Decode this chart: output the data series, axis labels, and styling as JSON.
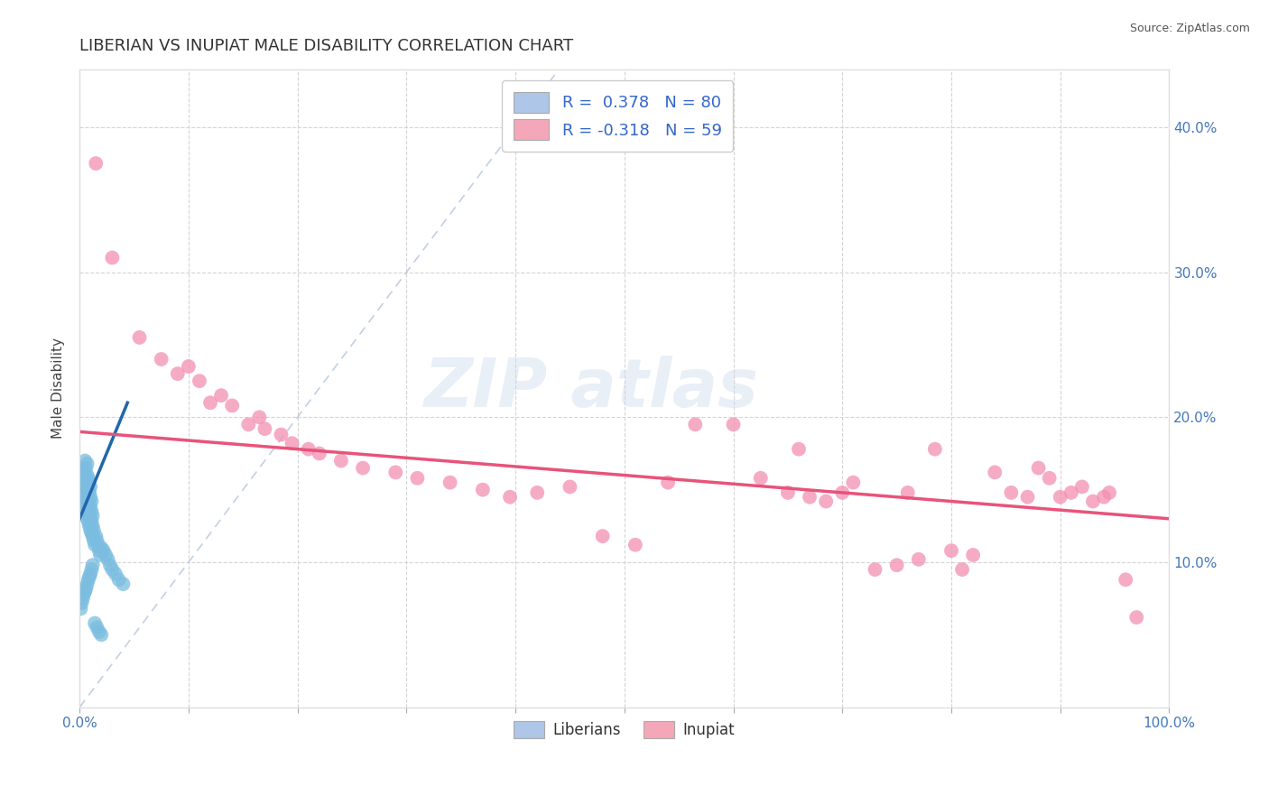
{
  "title": "LIBERIAN VS INUPIAT MALE DISABILITY CORRELATION CHART",
  "source": "Source: ZipAtlas.com",
  "ylabel": "Male Disability",
  "xlim": [
    0.0,
    1.0
  ],
  "ylim": [
    0.0,
    0.44
  ],
  "xtick_positions": [
    0.0,
    0.1,
    0.2,
    0.3,
    0.4,
    0.5,
    0.6,
    0.7,
    0.8,
    0.9,
    1.0
  ],
  "xtick_labels": [
    "0.0%",
    "",
    "",
    "",
    "",
    "",
    "",
    "",
    "",
    "",
    "100.0%"
  ],
  "yticks": [
    0.0,
    0.1,
    0.2,
    0.3,
    0.4
  ],
  "ytick_labels_right": [
    "",
    "10.0%",
    "20.0%",
    "30.0%",
    "40.0%"
  ],
  "legend_entries": [
    {
      "label": "R =  0.378   N = 80",
      "color": "#aec6e8"
    },
    {
      "label": "R = -0.318   N = 59",
      "color": "#f4a7b9"
    }
  ],
  "legend_bottom": [
    "Liberians",
    "Inupiat"
  ],
  "blue_color": "#7bbde0",
  "pink_color": "#f48fb1",
  "blue_line_color": "#2166ac",
  "pink_line_color": "#e8537a",
  "diag_line_color": "#b8c8dc",
  "background_color": "#ffffff",
  "grid_color": "#d0d0d0",
  "watermark_text": "ZIP atlas",
  "blue_dots": [
    [
      0.001,
      0.155
    ],
    [
      0.002,
      0.158
    ],
    [
      0.002,
      0.162
    ],
    [
      0.003,
      0.148
    ],
    [
      0.003,
      0.152
    ],
    [
      0.003,
      0.16
    ],
    [
      0.004,
      0.145
    ],
    [
      0.004,
      0.155
    ],
    [
      0.004,
      0.163
    ],
    [
      0.005,
      0.14
    ],
    [
      0.005,
      0.148
    ],
    [
      0.005,
      0.155
    ],
    [
      0.005,
      0.162
    ],
    [
      0.005,
      0.17
    ],
    [
      0.006,
      0.135
    ],
    [
      0.006,
      0.142
    ],
    [
      0.006,
      0.15
    ],
    [
      0.006,
      0.158
    ],
    [
      0.006,
      0.165
    ],
    [
      0.007,
      0.13
    ],
    [
      0.007,
      0.138
    ],
    [
      0.007,
      0.145
    ],
    [
      0.007,
      0.152
    ],
    [
      0.007,
      0.16
    ],
    [
      0.007,
      0.168
    ],
    [
      0.008,
      0.128
    ],
    [
      0.008,
      0.135
    ],
    [
      0.008,
      0.142
    ],
    [
      0.008,
      0.15
    ],
    [
      0.008,
      0.158
    ],
    [
      0.009,
      0.125
    ],
    [
      0.009,
      0.132
    ],
    [
      0.009,
      0.14
    ],
    [
      0.009,
      0.148
    ],
    [
      0.009,
      0.155
    ],
    [
      0.01,
      0.122
    ],
    [
      0.01,
      0.13
    ],
    [
      0.01,
      0.138
    ],
    [
      0.01,
      0.145
    ],
    [
      0.01,
      0.152
    ],
    [
      0.011,
      0.12
    ],
    [
      0.011,
      0.128
    ],
    [
      0.011,
      0.135
    ],
    [
      0.011,
      0.142
    ],
    [
      0.012,
      0.118
    ],
    [
      0.012,
      0.125
    ],
    [
      0.012,
      0.132
    ],
    [
      0.013,
      0.115
    ],
    [
      0.013,
      0.122
    ],
    [
      0.014,
      0.112
    ],
    [
      0.015,
      0.118
    ],
    [
      0.016,
      0.115
    ],
    [
      0.017,
      0.112
    ],
    [
      0.018,
      0.108
    ],
    [
      0.019,
      0.105
    ],
    [
      0.02,
      0.11
    ],
    [
      0.022,
      0.108
    ],
    [
      0.024,
      0.105
    ],
    [
      0.026,
      0.102
    ],
    [
      0.028,
      0.098
    ],
    [
      0.03,
      0.095
    ],
    [
      0.033,
      0.092
    ],
    [
      0.036,
      0.088
    ],
    [
      0.04,
      0.085
    ],
    [
      0.001,
      0.068
    ],
    [
      0.002,
      0.072
    ],
    [
      0.003,
      0.075
    ],
    [
      0.004,
      0.078
    ],
    [
      0.005,
      0.08
    ],
    [
      0.006,
      0.082
    ],
    [
      0.007,
      0.085
    ],
    [
      0.008,
      0.088
    ],
    [
      0.009,
      0.09
    ],
    [
      0.01,
      0.092
    ],
    [
      0.011,
      0.095
    ],
    [
      0.012,
      0.098
    ],
    [
      0.014,
      0.058
    ],
    [
      0.016,
      0.055
    ],
    [
      0.018,
      0.052
    ],
    [
      0.02,
      0.05
    ]
  ],
  "pink_dots": [
    [
      0.015,
      0.375
    ],
    [
      0.03,
      0.31
    ],
    [
      0.055,
      0.255
    ],
    [
      0.075,
      0.24
    ],
    [
      0.09,
      0.23
    ],
    [
      0.1,
      0.235
    ],
    [
      0.11,
      0.225
    ],
    [
      0.12,
      0.21
    ],
    [
      0.13,
      0.215
    ],
    [
      0.14,
      0.208
    ],
    [
      0.155,
      0.195
    ],
    [
      0.165,
      0.2
    ],
    [
      0.17,
      0.192
    ],
    [
      0.185,
      0.188
    ],
    [
      0.195,
      0.182
    ],
    [
      0.21,
      0.178
    ],
    [
      0.22,
      0.175
    ],
    [
      0.24,
      0.17
    ],
    [
      0.26,
      0.165
    ],
    [
      0.29,
      0.162
    ],
    [
      0.31,
      0.158
    ],
    [
      0.34,
      0.155
    ],
    [
      0.37,
      0.15
    ],
    [
      0.395,
      0.145
    ],
    [
      0.42,
      0.148
    ],
    [
      0.45,
      0.152
    ],
    [
      0.48,
      0.118
    ],
    [
      0.51,
      0.112
    ],
    [
      0.54,
      0.155
    ],
    [
      0.565,
      0.195
    ],
    [
      0.6,
      0.195
    ],
    [
      0.625,
      0.158
    ],
    [
      0.65,
      0.148
    ],
    [
      0.66,
      0.178
    ],
    [
      0.67,
      0.145
    ],
    [
      0.685,
      0.142
    ],
    [
      0.7,
      0.148
    ],
    [
      0.71,
      0.155
    ],
    [
      0.73,
      0.095
    ],
    [
      0.75,
      0.098
    ],
    [
      0.76,
      0.148
    ],
    [
      0.77,
      0.102
    ],
    [
      0.785,
      0.178
    ],
    [
      0.8,
      0.108
    ],
    [
      0.81,
      0.095
    ],
    [
      0.82,
      0.105
    ],
    [
      0.84,
      0.162
    ],
    [
      0.855,
      0.148
    ],
    [
      0.87,
      0.145
    ],
    [
      0.88,
      0.165
    ],
    [
      0.89,
      0.158
    ],
    [
      0.9,
      0.145
    ],
    [
      0.91,
      0.148
    ],
    [
      0.92,
      0.152
    ],
    [
      0.93,
      0.142
    ],
    [
      0.94,
      0.145
    ],
    [
      0.945,
      0.148
    ],
    [
      0.96,
      0.088
    ],
    [
      0.97,
      0.062
    ]
  ],
  "blue_line": {
    "x0": 0.0,
    "y0": 0.13,
    "x1": 0.044,
    "y1": 0.21
  },
  "pink_line": {
    "x0": 0.0,
    "y0": 0.19,
    "x1": 1.0,
    "y1": 0.13
  }
}
